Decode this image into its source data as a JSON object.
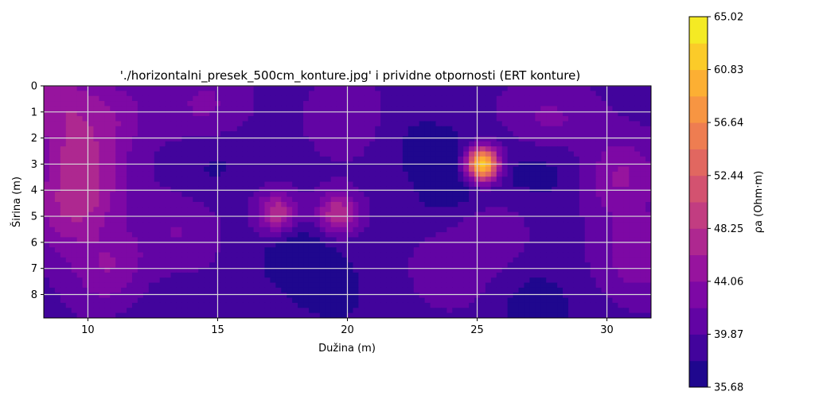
{
  "chart_data": {
    "type": "heatmap",
    "title": "'./horizontalni_presek_500cm_konture.jpg' i prividne otpornosti (ERT konture)",
    "xlabel": "Dužina (m)",
    "ylabel": "Širina (m)",
    "xlim": [
      8.3,
      31.7
    ],
    "ylim": [
      8.9,
      0
    ],
    "x_ticks": [
      "10",
      "15",
      "20",
      "25",
      "30"
    ],
    "y_ticks": [
      "0",
      "1",
      "2",
      "3",
      "4",
      "5",
      "6",
      "7",
      "8"
    ],
    "grid": true,
    "colormap": "plasma",
    "colorbar": {
      "label": "ρa (Ohm·m)",
      "min": 35.68,
      "max": 65.02,
      "ticks": [
        "35.68",
        "39.87",
        "44.06",
        "48.25",
        "52.44",
        "56.64",
        "60.83",
        "65.02"
      ],
      "levels": 14
    },
    "background_level": 39.3,
    "features": [
      {
        "x": 25.2,
        "y": 3.0,
        "value": 65.0,
        "kind": "peak"
      },
      {
        "x": 17.3,
        "y": 4.9,
        "value": 48.5,
        "kind": "peak"
      },
      {
        "x": 19.6,
        "y": 4.9,
        "value": 48.5,
        "kind": "peak"
      },
      {
        "x": 8.8,
        "y": 0.5,
        "value": 44.5,
        "kind": "high"
      },
      {
        "x": 9.5,
        "y": 2.5,
        "value": 44.0,
        "kind": "high"
      },
      {
        "x": 9.0,
        "y": 5.0,
        "value": 43.5,
        "kind": "high"
      },
      {
        "x": 11.0,
        "y": 1.2,
        "value": 43.0,
        "kind": "high"
      },
      {
        "x": 10.0,
        "y": 4.0,
        "value": 44.5,
        "kind": "high"
      },
      {
        "x": 10.8,
        "y": 7.0,
        "value": 44.0,
        "kind": "high"
      },
      {
        "x": 14.5,
        "y": 0.8,
        "value": 42.5,
        "kind": "high"
      },
      {
        "x": 13.5,
        "y": 5.5,
        "value": 42.0,
        "kind": "high"
      },
      {
        "x": 30.5,
        "y": 3.5,
        "value": 44.5,
        "kind": "high"
      },
      {
        "x": 31.3,
        "y": 6.5,
        "value": 44.0,
        "kind": "high"
      },
      {
        "x": 25.3,
        "y": 5.5,
        "value": 42.0,
        "kind": "high"
      },
      {
        "x": 28.3,
        "y": 1.6,
        "value": 42.0,
        "kind": "high"
      },
      {
        "x": 27.0,
        "y": 1.6,
        "value": 41.5,
        "kind": "high"
      },
      {
        "x": 20.0,
        "y": 1.2,
        "value": 41.5,
        "kind": "high"
      },
      {
        "x": 24.0,
        "y": 7.0,
        "value": 41.2,
        "kind": "high"
      },
      {
        "x": 18.0,
        "y": 6.5,
        "value": 36.0,
        "kind": "low"
      },
      {
        "x": 26.5,
        "y": 2.9,
        "value": 37.0,
        "kind": "low"
      },
      {
        "x": 23.8,
        "y": 3.0,
        "value": 37.0,
        "kind": "low"
      },
      {
        "x": 28.3,
        "y": 3.0,
        "value": 36.8,
        "kind": "low"
      },
      {
        "x": 14.8,
        "y": 3.0,
        "value": 37.3,
        "kind": "low"
      },
      {
        "x": 27.3,
        "y": 8.5,
        "value": 36.5,
        "kind": "low"
      },
      {
        "x": 19.5,
        "y": 7.9,
        "value": 37.0,
        "kind": "low"
      },
      {
        "x": 24.2,
        "y": 4.3,
        "value": 37.2,
        "kind": "low"
      },
      {
        "x": 22.5,
        "y": 2.0,
        "value": 38.0,
        "kind": "low"
      },
      {
        "x": 12.5,
        "y": 8.5,
        "value": 38.2,
        "kind": "low"
      }
    ]
  }
}
